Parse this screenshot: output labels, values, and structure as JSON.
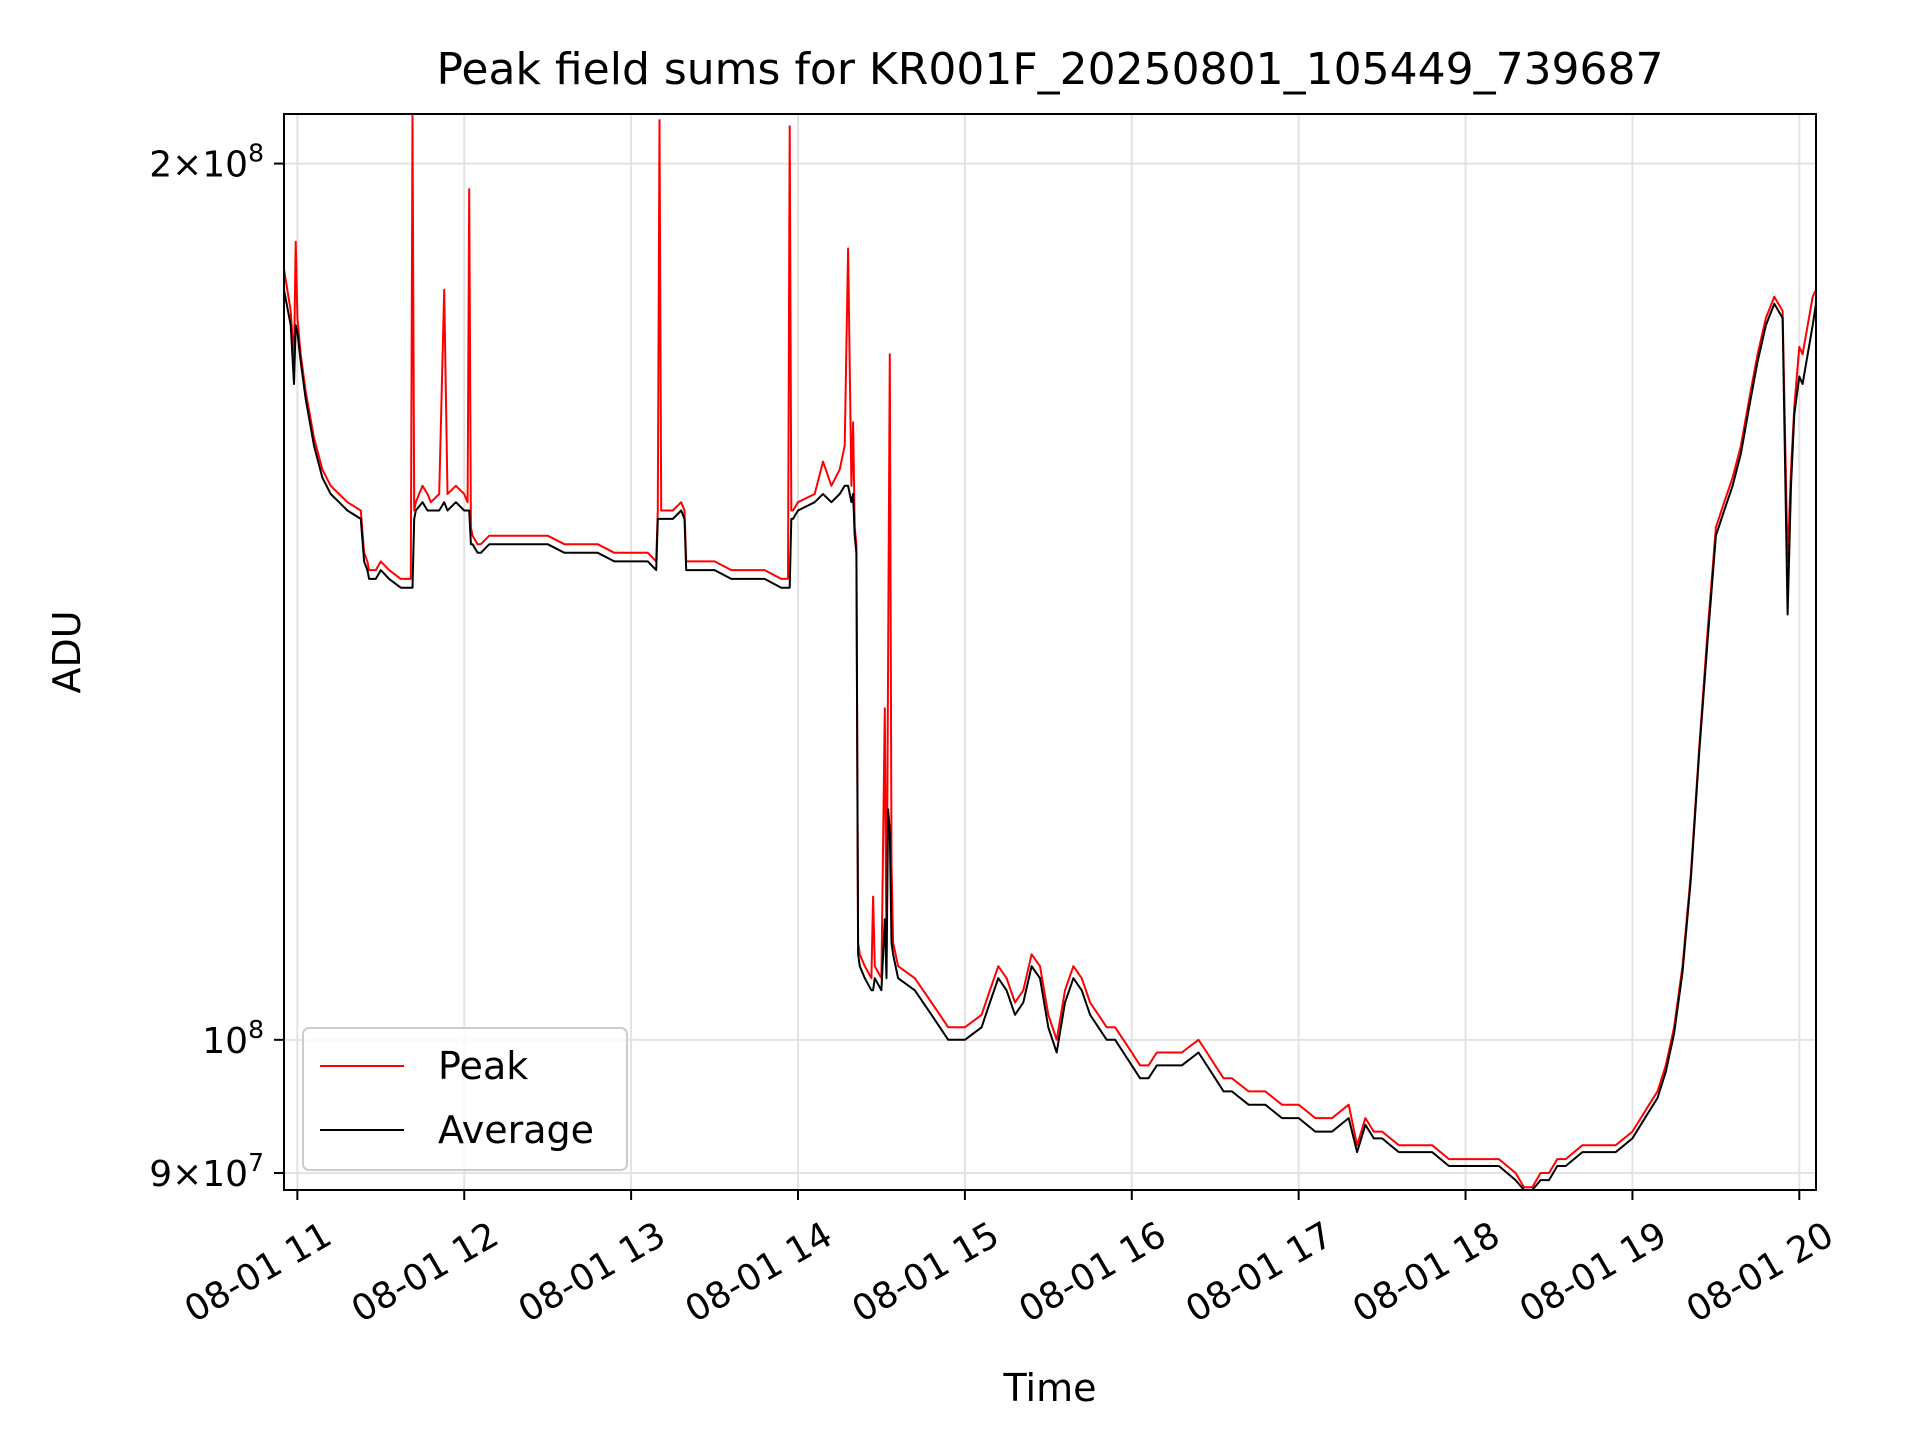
{
  "chart_data": {
    "type": "line",
    "title": "Peak field sums for KR001F_20250801_105449_739687",
    "xlabel": "Time",
    "ylabel": "ADU",
    "x_unit": "time of day (hours) on 2025-08-01",
    "y_scale": "log",
    "xlim": [
      10.92,
      20.1
    ],
    "ylim": [
      88800000,
      208000000
    ],
    "grid": true,
    "legend_position": "lower-left",
    "x_ticks": [
      {
        "value": 11,
        "label": "08-01 11"
      },
      {
        "value": 12,
        "label": "08-01 12"
      },
      {
        "value": 13,
        "label": "08-01 13"
      },
      {
        "value": 14,
        "label": "08-01 14"
      },
      {
        "value": 15,
        "label": "08-01 15"
      },
      {
        "value": 16,
        "label": "08-01 16"
      },
      {
        "value": 17,
        "label": "08-01 17"
      },
      {
        "value": 18,
        "label": "08-01 18"
      },
      {
        "value": 19,
        "label": "08-01 19"
      },
      {
        "value": 20,
        "label": "08-01 20"
      }
    ],
    "y_ticks": [
      {
        "value": 200000000,
        "base": "2×10",
        "exp": "8"
      },
      {
        "value": 100000000,
        "base": "10",
        "exp": "8"
      },
      {
        "value": 90000000,
        "base": "9×10",
        "exp": "7"
      }
    ],
    "series": [
      {
        "name": "Peak",
        "color": "#ff0000",
        "x": [
          10.92,
          10.96,
          10.98,
          10.99,
          11.0,
          11.02,
          11.05,
          11.1,
          11.15,
          11.2,
          11.25,
          11.3,
          11.38,
          11.4,
          11.42,
          11.43,
          11.47,
          11.5,
          11.55,
          11.62,
          11.68,
          11.69,
          11.7,
          11.71,
          11.75,
          11.78,
          11.8,
          11.85,
          11.88,
          11.9,
          11.95,
          12.0,
          12.02,
          12.03,
          12.04,
          12.05,
          12.08,
          12.1,
          12.15,
          12.2,
          12.3,
          12.4,
          12.5,
          12.6,
          12.7,
          12.8,
          12.9,
          13.0,
          13.1,
          13.15,
          13.16,
          13.17,
          13.18,
          13.2,
          13.25,
          13.3,
          13.32,
          13.33,
          13.4,
          13.5,
          13.6,
          13.7,
          13.8,
          13.9,
          13.94,
          13.95,
          13.96,
          13.97,
          14.0,
          14.1,
          14.15,
          14.2,
          14.25,
          14.28,
          14.3,
          14.32,
          14.33,
          14.34,
          14.35,
          14.36,
          14.37,
          14.4,
          14.44,
          14.45,
          14.46,
          14.5,
          14.52,
          14.53,
          14.54,
          14.55,
          14.56,
          14.57,
          14.6,
          14.7,
          14.8,
          14.9,
          15.0,
          15.1,
          15.15,
          15.2,
          15.25,
          15.3,
          15.35,
          15.4,
          15.45,
          15.5,
          15.55,
          15.6,
          15.65,
          15.7,
          15.75,
          15.8,
          15.85,
          15.9,
          15.95,
          16.0,
          16.05,
          16.1,
          16.15,
          16.2,
          16.3,
          16.4,
          16.45,
          16.5,
          16.55,
          16.6,
          16.7,
          16.8,
          16.9,
          17.0,
          17.1,
          17.2,
          17.3,
          17.35,
          17.4,
          17.45,
          17.5,
          17.6,
          17.7,
          17.8,
          17.9,
          18.0,
          18.1,
          18.2,
          18.3,
          18.35,
          18.4,
          18.45,
          18.5,
          18.55,
          18.6,
          18.7,
          18.8,
          18.9,
          19.0,
          19.05,
          19.1,
          19.15,
          19.2,
          19.25,
          19.3,
          19.35,
          19.4,
          19.45,
          19.5,
          19.55,
          19.6,
          19.65,
          19.7,
          19.75,
          19.8,
          19.85,
          19.9,
          19.93,
          19.95,
          19.97,
          20.0,
          20.02,
          20.05,
          20.08,
          20.1
        ],
        "y": [
          184000000,
          178000000,
          171000000,
          188000000,
          177000000,
          172000000,
          167000000,
          161000000,
          157000000,
          155000000,
          154000000,
          153000000,
          152000000,
          147000000,
          146000000,
          145000000,
          145000000,
          146000000,
          145000000,
          144000000,
          144000000,
          208000000,
          152000000,
          153000000,
          155000000,
          154000000,
          153000000,
          154000000,
          181000000,
          154000000,
          155000000,
          154000000,
          153000000,
          196000000,
          150000000,
          149000000,
          148000000,
          148000000,
          149000000,
          149000000,
          149000000,
          149000000,
          149000000,
          148000000,
          148000000,
          148000000,
          147000000,
          147000000,
          147000000,
          146000000,
          152000000,
          207000000,
          152000000,
          152000000,
          152000000,
          153000000,
          152000000,
          146000000,
          146000000,
          146000000,
          145000000,
          145000000,
          145000000,
          144000000,
          144000000,
          206000000,
          152000000,
          152000000,
          153000000,
          154000000,
          158000000,
          155000000,
          157000000,
          160000000,
          187000000,
          155000000,
          163000000,
          150000000,
          148000000,
          108000000,
          107000000,
          106000000,
          105000000,
          112000000,
          106000000,
          105000000,
          130000000,
          106000000,
          135000000,
          172000000,
          115000000,
          108000000,
          106000000,
          105000000,
          103000000,
          101000000,
          101000000,
          102000000,
          104000000,
          106000000,
          105000000,
          103000000,
          104000000,
          107000000,
          106000000,
          102000000,
          100000000,
          104000000,
          106000000,
          105000000,
          103000000,
          102000000,
          101000000,
          101000000,
          100000000,
          99000000,
          98000000,
          98000000,
          99000000,
          99000000,
          99000000,
          100000000,
          99000000,
          98000000,
          97000000,
          97000000,
          96000000,
          96000000,
          95000000,
          95000000,
          94000000,
          94000000,
          95000000,
          92000000,
          94000000,
          93000000,
          93000000,
          92000000,
          92000000,
          92000000,
          91000000,
          91000000,
          91000000,
          91000000,
          90000000,
          89000000,
          89000000,
          90000000,
          90000000,
          91000000,
          91000000,
          92000000,
          92000000,
          92000000,
          93000000,
          94000000,
          95000000,
          96000000,
          98000000,
          101000000,
          106000000,
          114000000,
          126000000,
          138000000,
          150000000,
          153000000,
          156000000,
          160000000,
          166000000,
          172000000,
          177000000,
          180000000,
          178000000,
          146000000,
          157000000,
          165000000,
          173000000,
          172000000,
          176000000,
          180000000,
          181000000
        ]
      },
      {
        "name": "Average",
        "color": "#000000",
        "x": [
          10.92,
          10.96,
          10.98,
          10.99,
          11.0,
          11.02,
          11.05,
          11.1,
          11.15,
          11.2,
          11.25,
          11.3,
          11.38,
          11.4,
          11.42,
          11.43,
          11.47,
          11.5,
          11.55,
          11.62,
          11.68,
          11.69,
          11.7,
          11.71,
          11.75,
          11.78,
          11.8,
          11.85,
          11.88,
          11.9,
          11.95,
          12.0,
          12.02,
          12.03,
          12.04,
          12.05,
          12.08,
          12.1,
          12.15,
          12.2,
          12.3,
          12.4,
          12.5,
          12.6,
          12.7,
          12.8,
          12.9,
          13.0,
          13.1,
          13.15,
          13.16,
          13.17,
          13.18,
          13.2,
          13.25,
          13.3,
          13.32,
          13.33,
          13.4,
          13.5,
          13.6,
          13.7,
          13.8,
          13.9,
          13.94,
          13.95,
          13.96,
          13.97,
          14.0,
          14.1,
          14.15,
          14.2,
          14.25,
          14.28,
          14.3,
          14.32,
          14.33,
          14.34,
          14.35,
          14.36,
          14.37,
          14.4,
          14.44,
          14.45,
          14.46,
          14.5,
          14.52,
          14.53,
          14.54,
          14.55,
          14.56,
          14.57,
          14.6,
          14.7,
          14.8,
          14.9,
          15.0,
          15.1,
          15.15,
          15.2,
          15.25,
          15.3,
          15.35,
          15.4,
          15.45,
          15.5,
          15.55,
          15.6,
          15.65,
          15.7,
          15.75,
          15.8,
          15.85,
          15.9,
          15.95,
          16.0,
          16.05,
          16.1,
          16.15,
          16.2,
          16.3,
          16.4,
          16.45,
          16.5,
          16.55,
          16.6,
          16.7,
          16.8,
          16.9,
          17.0,
          17.1,
          17.2,
          17.3,
          17.35,
          17.4,
          17.45,
          17.5,
          17.6,
          17.7,
          17.8,
          17.9,
          18.0,
          18.1,
          18.2,
          18.3,
          18.35,
          18.4,
          18.45,
          18.5,
          18.55,
          18.6,
          18.7,
          18.8,
          18.9,
          19.0,
          19.05,
          19.1,
          19.15,
          19.2,
          19.25,
          19.3,
          19.35,
          19.4,
          19.45,
          19.5,
          19.55,
          19.6,
          19.65,
          19.7,
          19.75,
          19.8,
          19.85,
          19.9,
          19.93,
          19.95,
          19.97,
          20.0,
          20.02,
          20.05,
          20.08,
          20.1
        ],
        "y": [
          181000000,
          176000000,
          168000000,
          176000000,
          175000000,
          171000000,
          166000000,
          160000000,
          156000000,
          154000000,
          153000000,
          152000000,
          151000000,
          146000000,
          145000000,
          144000000,
          144000000,
          145000000,
          144000000,
          143000000,
          143000000,
          143000000,
          151000000,
          152000000,
          153000000,
          152000000,
          152000000,
          152000000,
          153000000,
          152000000,
          153000000,
          152000000,
          152000000,
          152000000,
          148000000,
          148000000,
          147000000,
          147000000,
          148000000,
          148000000,
          148000000,
          148000000,
          148000000,
          147000000,
          147000000,
          147000000,
          146000000,
          146000000,
          146000000,
          145000000,
          151000000,
          151000000,
          151000000,
          151000000,
          151000000,
          152000000,
          151000000,
          145000000,
          145000000,
          145000000,
          144000000,
          144000000,
          144000000,
          143000000,
          143000000,
          143000000,
          151000000,
          151000000,
          152000000,
          153000000,
          154000000,
          153000000,
          154000000,
          155000000,
          155000000,
          153000000,
          154000000,
          149000000,
          147000000,
          107000000,
          106000000,
          105000000,
          104000000,
          104000000,
          105000000,
          104000000,
          110000000,
          105000000,
          120000000,
          118000000,
          108000000,
          107000000,
          105000000,
          104000000,
          102000000,
          100000000,
          100000000,
          101000000,
          103000000,
          105000000,
          104000000,
          102000000,
          103000000,
          106000000,
          105000000,
          101000000,
          99000000,
          103000000,
          105000000,
          104000000,
          102000000,
          101000000,
          100000000,
          100000000,
          99000000,
          98000000,
          97000000,
          97000000,
          98000000,
          98000000,
          98000000,
          99000000,
          98000000,
          97000000,
          96000000,
          96000000,
          95000000,
          95000000,
          94000000,
          94000000,
          93000000,
          93000000,
          94000000,
          91500000,
          93500000,
          92500000,
          92500000,
          91500000,
          91500000,
          91500000,
          90500000,
          90500000,
          90500000,
          90500000,
          89500000,
          88800000,
          88800000,
          89500000,
          89500000,
          90500000,
          90500000,
          91500000,
          91500000,
          91500000,
          92500000,
          93500000,
          94500000,
          95500000,
          97500000,
          100500000,
          105500000,
          113500000,
          125500000,
          137000000,
          149000000,
          152000000,
          155000000,
          159000000,
          165000000,
          171000000,
          176000000,
          179000000,
          177000000,
          140000000,
          155000000,
          164000000,
          169000000,
          168000000,
          172000000,
          176000000,
          179000000
        ]
      }
    ]
  }
}
